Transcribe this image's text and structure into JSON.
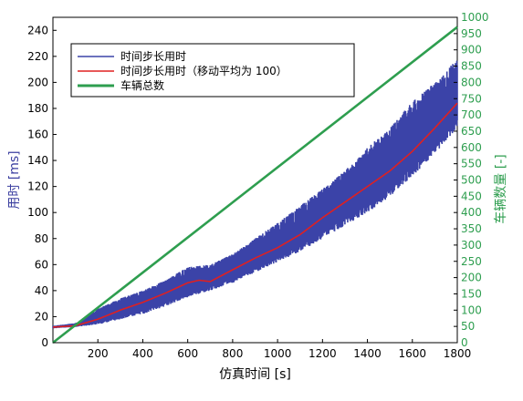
{
  "chart_data": {
    "type": "line",
    "xlabel": "仿真时间 [s]",
    "ylabel_left": "用时 [ms]",
    "ylabel_right": "车辆数量 [-]",
    "xlim": [
      0,
      1800
    ],
    "ylim_left": [
      0,
      250
    ],
    "ylim_right": [
      0,
      1000
    ],
    "x_ticks": [
      200,
      400,
      600,
      800,
      1000,
      1200,
      1400,
      1600,
      1800
    ],
    "y_left_ticks": [
      0,
      20,
      40,
      60,
      80,
      100,
      120,
      140,
      160,
      180,
      200,
      220,
      240
    ],
    "y_right_ticks": [
      0,
      50,
      100,
      150,
      200,
      250,
      300,
      350,
      400,
      450,
      500,
      550,
      600,
      650,
      700,
      750,
      800,
      850,
      900,
      950,
      1000
    ],
    "grid": false,
    "legend_position": "top-left",
    "series": [
      {
        "name": "时间步长用时",
        "axis": "left",
        "color": "#3b43a8",
        "style": "noisy band",
        "x": [
          0,
          100,
          200,
          300,
          400,
          500,
          600,
          700,
          800,
          900,
          1000,
          1100,
          1200,
          1300,
          1400,
          1500,
          1600,
          1700,
          1800
        ],
        "lower": [
          11,
          12,
          14,
          18,
          22,
          28,
          35,
          40,
          46,
          54,
          62,
          70,
          80,
          90,
          100,
          112,
          128,
          145,
          165
        ],
        "upper": [
          13,
          15,
          26,
          34,
          40,
          48,
          58,
          60,
          68,
          80,
          92,
          105,
          118,
          132,
          150,
          165,
          185,
          200,
          218
        ]
      },
      {
        "name": "时间步长用时（移动平均为 100）",
        "axis": "left",
        "color": "#e02020",
        "x": [
          0,
          100,
          200,
          300,
          400,
          500,
          600,
          650,
          700,
          800,
          900,
          1000,
          1100,
          1200,
          1300,
          1400,
          1500,
          1600,
          1700,
          1800
        ],
        "values": [
          12,
          13,
          18,
          25,
          31,
          38,
          46,
          48,
          47,
          56,
          65,
          73,
          83,
          96,
          108,
          120,
          132,
          147,
          165,
          184
        ]
      },
      {
        "name": "车辆总数",
        "axis": "right",
        "color": "#2e9e4f",
        "x": [
          0,
          1800
        ],
        "values": [
          0,
          970
        ]
      }
    ]
  }
}
